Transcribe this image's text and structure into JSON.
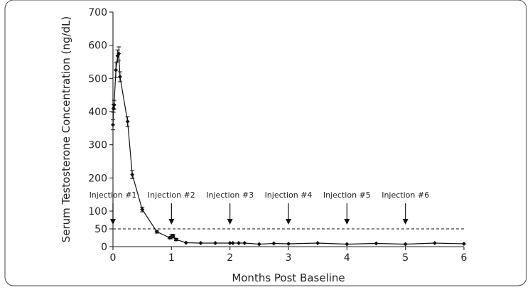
{
  "chart_data": {
    "type": "line",
    "xlabel": "Months Post Baseline",
    "ylabel": "Serum Testosterone Concentration (ng/dL)",
    "xlim": [
      0,
      6
    ],
    "ylim": [
      0,
      700
    ],
    "x_ticks": [
      "0",
      "1",
      "2",
      "3",
      "4",
      "5",
      "6"
    ],
    "y_ticks": [
      "0",
      "50",
      "100",
      "200",
      "300",
      "400",
      "500",
      "600",
      "700"
    ],
    "grid": false,
    "series": [
      {
        "x": [
          0,
          0.01,
          0.02,
          0.05,
          0.08,
          0.1,
          0.12,
          0.25,
          0.33,
          0.5,
          0.75,
          0.97,
          1.0,
          1.03,
          1.08,
          1.25,
          1.5,
          1.75,
          2.0,
          2.05,
          2.15,
          2.25,
          2.5,
          2.75,
          3.0,
          3.5,
          4.0,
          4.5,
          5.0,
          5.5,
          6.0
        ],
        "y": [
          360,
          410,
          420,
          525,
          568,
          575,
          505,
          370,
          210,
          105,
          42,
          25,
          28,
          30,
          20,
          11,
          10,
          10,
          10,
          10,
          10,
          10,
          7,
          9,
          8,
          10,
          7,
          9,
          7,
          10,
          8
        ],
        "error": [
          15,
          12,
          14,
          22,
          18,
          20,
          15,
          15,
          12,
          7,
          4,
          3,
          6,
          5,
          3,
          1,
          1,
          1,
          1,
          1,
          1,
          1,
          1,
          1,
          1,
          1,
          1,
          1,
          1,
          1,
          1
        ]
      }
    ],
    "reference_lines": [
      {
        "y": 50,
        "style": "dashed"
      }
    ],
    "annotations": [
      {
        "label": "Injection #1",
        "x": 0
      },
      {
        "label": "Injection #2",
        "x": 1
      },
      {
        "label": "Injection #3",
        "x": 2
      },
      {
        "label": "Injection #4",
        "x": 3
      },
      {
        "label": "Injection #5",
        "x": 4
      },
      {
        "label": "Injection #6",
        "x": 5
      }
    ]
  }
}
